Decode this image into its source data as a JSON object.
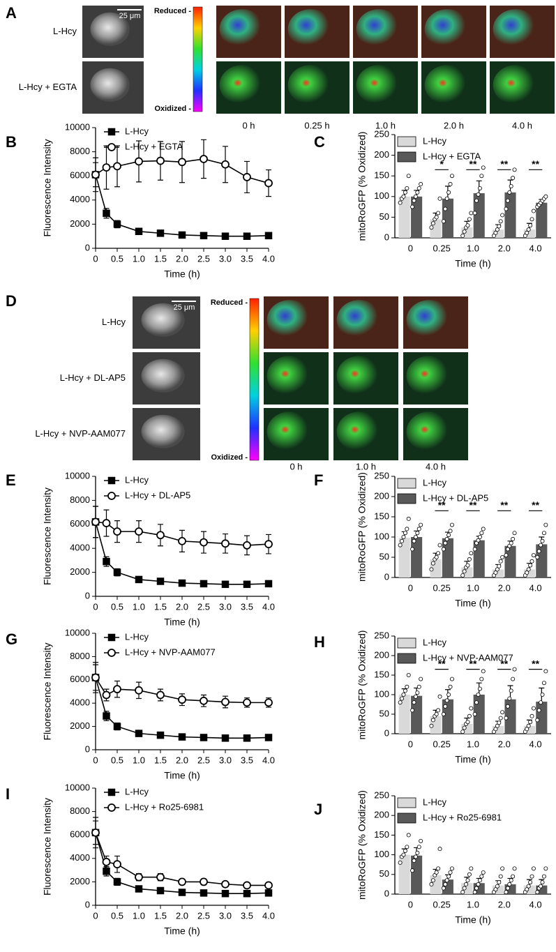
{
  "image_panels": [
    {
      "panel": "A",
      "scale_bar": "25 μm",
      "rows": [
        "L-Hcy",
        "L-Hcy + EGTA"
      ],
      "colorbar": {
        "top": "Reduced -",
        "bottom": "Oxidized -"
      },
      "times": [
        "0 h",
        "0.25 h",
        "1.0 h",
        "2.0 h",
        "4.0 h"
      ]
    },
    {
      "panel": "D",
      "scale_bar": "25 μm",
      "rows": [
        "L-Hcy",
        "L-Hcy + DL-AP5",
        "L-Hcy + NVP-AAM077"
      ],
      "colorbar": {
        "top": "Reduced -",
        "bottom": "Oxidized -"
      },
      "times": [
        "0 h",
        "1.0 h",
        "4.0 h"
      ]
    }
  ],
  "chart_data": [
    {
      "type": "line",
      "panel": "B",
      "xlabel": "Time (h)",
      "ylabel": "Fluorescence Intensity",
      "x": [
        0,
        0.25,
        0.5,
        1,
        1.5,
        2,
        2.5,
        3,
        3.5,
        4
      ],
      "xlim": [
        0,
        4
      ],
      "xticks": [
        0,
        0.5,
        {
          "value": 1,
          "label": "1.0"
        },
        1.5,
        {
          "value": 2,
          "label": "2.0"
        },
        2.5,
        {
          "value": 3,
          "label": "3.0"
        },
        3.5,
        {
          "value": 4,
          "label": "4.0"
        }
      ],
      "ylim": [
        0,
        10000
      ],
      "yticks": [
        0,
        2000,
        4000,
        6000,
        8000,
        10000
      ],
      "series": [
        {
          "name": "L-Hcy",
          "color": "#000000",
          "marker": "square",
          "filled": true,
          "values": [
            6100,
            2900,
            2000,
            1400,
            1250,
            1100,
            1050,
            1000,
            1000,
            1050
          ],
          "errors": [
            1400,
            400,
            300,
            200,
            150,
            100,
            100,
            100,
            100,
            100
          ]
        },
        {
          "name": "L-Hcy + EGTA",
          "color": "#000000",
          "marker": "circle",
          "filled": false,
          "values": [
            6100,
            6700,
            6800,
            7200,
            7250,
            7150,
            7400,
            6950,
            5900,
            5400
          ],
          "errors": [
            1000,
            1800,
            1700,
            1700,
            1600,
            1700,
            1600,
            1500,
            1300,
            1100
          ]
        }
      ]
    },
    {
      "type": "bar",
      "panel": "C",
      "xlabel": "Time (h)",
      "ylabel": "mitoRoGFP (% Oxidized)",
      "categories": [
        "0",
        "0.25",
        "1.0",
        "2.0",
        "4.0"
      ],
      "ylim": [
        0,
        250
      ],
      "yticks": [
        0,
        50,
        100,
        150,
        200,
        250
      ],
      "significance": [
        null,
        "*",
        "**",
        "**",
        "**"
      ],
      "series": [
        {
          "name": "L-Hcy",
          "color": "#d9d9d9",
          "values": [
            100,
            45,
            25,
            20,
            20
          ],
          "errors": [
            15,
            15,
            15,
            12,
            15
          ],
          "points": [
            [
              85,
              95,
              100,
              110,
              120,
              150
            ],
            [
              25,
              35,
              45,
              50,
              60,
              95
            ],
            [
              5,
              15,
              25,
              30,
              45,
              60
            ],
            [
              5,
              12,
              20,
              28,
              40,
              55
            ],
            [
              5,
              12,
              20,
              30,
              45,
              65
            ]
          ]
        },
        {
          "name": "L-Hcy + EGTA",
          "color": "#595959",
          "values": [
            100,
            95,
            108,
            110,
            85
          ],
          "errors": [
            15,
            30,
            30,
            30,
            8
          ],
          "points": [
            [
              75,
              90,
              100,
              110,
              120,
              130
            ],
            [
              40,
              70,
              95,
              110,
              130,
              150
            ],
            [
              60,
              90,
              105,
              120,
              150,
              170
            ],
            [
              70,
              90,
              110,
              125,
              145,
              165
            ],
            [
              75,
              80,
              85,
              90,
              95,
              100
            ]
          ]
        }
      ]
    },
    {
      "type": "line",
      "panel": "E",
      "xlabel": "Time (h)",
      "ylabel": "Fluorescence Intensity",
      "x": [
        0,
        0.25,
        0.5,
        1,
        1.5,
        2,
        2.5,
        3,
        3.5,
        4
      ],
      "xlim": [
        0,
        4
      ],
      "xticks": [
        0,
        0.5,
        {
          "value": 1,
          "label": "1.0"
        },
        1.5,
        {
          "value": 2,
          "label": "2.0"
        },
        2.5,
        {
          "value": 3,
          "label": "3.0"
        },
        3.5,
        {
          "value": 4,
          "label": "4.0"
        }
      ],
      "ylim": [
        0,
        10000
      ],
      "yticks": [
        0,
        2000,
        4000,
        6000,
        8000,
        10000
      ],
      "series": [
        {
          "name": "L-Hcy",
          "color": "#000000",
          "marker": "square",
          "filled": true,
          "values": [
            6200,
            2900,
            2000,
            1400,
            1250,
            1100,
            1050,
            1000,
            1000,
            1050
          ],
          "errors": [
            1300,
            400,
            300,
            200,
            150,
            100,
            100,
            100,
            100,
            100
          ]
        },
        {
          "name": "L-Hcy + DL-AP5",
          "color": "#000000",
          "marker": "circle",
          "filled": false,
          "values": [
            6200,
            6100,
            5400,
            5400,
            5100,
            4600,
            4500,
            4400,
            4250,
            4350
          ],
          "errors": [
            1300,
            1100,
            900,
            900,
            900,
            900,
            900,
            800,
            800,
            800
          ]
        }
      ]
    },
    {
      "type": "bar",
      "panel": "F",
      "xlabel": "Time (h)",
      "ylabel": "mitoRoGFP (% Oxidized)",
      "categories": [
        "0",
        "0.25",
        "1.0",
        "2.0",
        "4.0"
      ],
      "ylim": [
        0,
        250
      ],
      "yticks": [
        0,
        50,
        100,
        150,
        200,
        250
      ],
      "significance": [
        null,
        "**",
        "**",
        "**",
        "**"
      ],
      "series": [
        {
          "name": "L-Hcy",
          "color": "#d9d9d9",
          "values": [
            98,
            45,
            25,
            20,
            20
          ],
          "errors": [
            15,
            15,
            15,
            12,
            15
          ],
          "points": [
            [
              80,
              90,
              100,
              110,
              120,
              145
            ],
            [
              20,
              35,
              45,
              50,
              60,
              80
            ],
            [
              5,
              15,
              25,
              30,
              45,
              60
            ],
            [
              5,
              12,
              20,
              28,
              40,
              50
            ],
            [
              5,
              12,
              20,
              30,
              40,
              55
            ]
          ]
        },
        {
          "name": "L-Hcy + DL-AP5",
          "color": "#595959",
          "values": [
            100,
            97,
            92,
            78,
            82
          ],
          "errors": [
            15,
            15,
            10,
            12,
            18
          ],
          "points": [
            [
              70,
              90,
              100,
              110,
              120,
              130
            ],
            [
              70,
              85,
              95,
              105,
              115,
              130
            ],
            [
              70,
              85,
              92,
              100,
              110,
              120
            ],
            [
              55,
              70,
              78,
              85,
              95,
              110
            ],
            [
              50,
              65,
              80,
              90,
              110,
              130
            ]
          ]
        }
      ]
    },
    {
      "type": "line",
      "panel": "G",
      "xlabel": "Time (h)",
      "ylabel": "Fluorescence Intensity",
      "x": [
        0,
        0.25,
        0.5,
        1,
        1.5,
        2,
        2.5,
        3,
        3.5,
        4
      ],
      "xlim": [
        0,
        4
      ],
      "xticks": [
        0,
        0.5,
        {
          "value": 1,
          "label": "1.0"
        },
        1.5,
        {
          "value": 2,
          "label": "2.0"
        },
        2.5,
        {
          "value": 3,
          "label": "3.0"
        },
        3.5,
        {
          "value": 4,
          "label": "4.0"
        }
      ],
      "ylim": [
        0,
        10000
      ],
      "yticks": [
        0,
        2000,
        4000,
        6000,
        8000,
        10000
      ],
      "series": [
        {
          "name": "L-Hcy",
          "color": "#000000",
          "marker": "square",
          "filled": true,
          "values": [
            6200,
            2900,
            2000,
            1400,
            1250,
            1100,
            1050,
            1000,
            1000,
            1050
          ],
          "errors": [
            1300,
            400,
            300,
            200,
            150,
            100,
            100,
            100,
            100,
            100
          ]
        },
        {
          "name": "L-Hcy + NVP-AAM077",
          "color": "#000000",
          "marker": "circle",
          "filled": false,
          "values": [
            6200,
            4700,
            5200,
            5100,
            4700,
            4300,
            4200,
            4100,
            4050,
            4050
          ],
          "errors": [
            1100,
            500,
            700,
            700,
            500,
            500,
            500,
            500,
            400,
            400
          ]
        }
      ]
    },
    {
      "type": "bar",
      "panel": "H",
      "xlabel": "Time (h)",
      "ylabel": "mitoRoGFP (% Oxidized)",
      "categories": [
        "0",
        "0.25",
        "1.0",
        "2.0",
        "4.0"
      ],
      "ylim": [
        0,
        250
      ],
      "yticks": [
        0,
        50,
        100,
        150,
        200,
        250
      ],
      "significance": [
        null,
        "**",
        "**",
        "**",
        "**"
      ],
      "series": [
        {
          "name": "L-Hcy",
          "color": "#d9d9d9",
          "values": [
            100,
            45,
            25,
            20,
            20
          ],
          "errors": [
            15,
            15,
            15,
            12,
            15
          ],
          "points": [
            [
              80,
              90,
              100,
              110,
              120,
              150
            ],
            [
              20,
              35,
              45,
              50,
              60,
              95
            ],
            [
              5,
              15,
              25,
              30,
              45,
              65
            ],
            [
              5,
              12,
              20,
              28,
              40,
              55
            ],
            [
              5,
              12,
              20,
              30,
              45,
              65
            ]
          ]
        },
        {
          "name": "L-Hcy + NVP-AAM077",
          "color": "#595959",
          "values": [
            97,
            88,
            100,
            88,
            82
          ],
          "errors": [
            20,
            25,
            30,
            35,
            35
          ],
          "points": [
            [
              60,
              80,
              95,
              105,
              120,
              140
            ],
            [
              50,
              70,
              85,
              100,
              120,
              140
            ],
            [
              50,
              80,
              100,
              115,
              140,
              160
            ],
            [
              40,
              70,
              90,
              110,
              140,
              165
            ],
            [
              35,
              60,
              80,
              100,
              130,
              160
            ]
          ]
        }
      ]
    },
    {
      "type": "line",
      "panel": "I",
      "xlabel": "Time (h)",
      "ylabel": "Fluorescence Intensity",
      "x": [
        0,
        0.25,
        0.5,
        1,
        1.5,
        2,
        2.5,
        3,
        3.5,
        4
      ],
      "xlim": [
        0,
        4
      ],
      "xticks": [
        0,
        0.5,
        {
          "value": 1,
          "label": "1.0"
        },
        1.5,
        {
          "value": 2,
          "label": "2.0"
        },
        2.5,
        {
          "value": 3,
          "label": "3.0"
        },
        3.5,
        {
          "value": 4,
          "label": "4.0"
        }
      ],
      "ylim": [
        0,
        10000
      ],
      "yticks": [
        0,
        2000,
        4000,
        6000,
        8000,
        10000
      ],
      "series": [
        {
          "name": "L-Hcy",
          "color": "#000000",
          "marker": "square",
          "filled": true,
          "values": [
            6200,
            2900,
            2000,
            1400,
            1250,
            1100,
            1050,
            1000,
            1000,
            1050
          ],
          "errors": [
            1300,
            400,
            300,
            200,
            150,
            100,
            100,
            100,
            100,
            100
          ]
        },
        {
          "name": "L-Hcy + Ro25-6981",
          "color": "#000000",
          "marker": "circle",
          "filled": false,
          "values": [
            6200,
            3700,
            3500,
            2400,
            2400,
            2000,
            2000,
            1800,
            1700,
            1700
          ],
          "errors": [
            1000,
            500,
            700,
            300,
            300,
            200,
            250,
            200,
            150,
            200
          ]
        }
      ]
    },
    {
      "type": "bar",
      "panel": "J",
      "xlabel": "Time (h)",
      "ylabel": "mitoRoGFP (% Oxidized)",
      "categories": [
        "0",
        "0.25",
        "1.0",
        "2.0",
        "4.0"
      ],
      "ylim": [
        0,
        250
      ],
      "yticks": [
        0,
        50,
        100,
        150,
        200,
        250
      ],
      "series": [
        {
          "name": "L-Hcy",
          "color": "#d9d9d9",
          "values": [
            100,
            48,
            28,
            22,
            22
          ],
          "errors": [
            15,
            15,
            15,
            12,
            15
          ],
          "points": [
            [
              80,
              95,
              100,
              110,
              120,
              150
            ],
            [
              25,
              35,
              48,
              55,
              65,
              115
            ],
            [
              5,
              15,
              25,
              35,
              50,
              65
            ],
            [
              5,
              12,
              20,
              30,
              45,
              65
            ],
            [
              5,
              12,
              20,
              30,
              45,
              65
            ]
          ]
        },
        {
          "name": "L-Hcy + Ro25-6981",
          "color": "#595959",
          "values": [
            98,
            37,
            28,
            25,
            22
          ],
          "errors": [
            20,
            12,
            12,
            15,
            15
          ],
          "points": [
            [
              60,
              85,
              95,
              105,
              120,
              135
            ],
            [
              15,
              25,
              35,
              45,
              55,
              65
            ],
            [
              5,
              15,
              25,
              35,
              45,
              55
            ],
            [
              5,
              15,
              25,
              35,
              45,
              65
            ],
            [
              5,
              15,
              20,
              30,
              45,
              65
            ]
          ]
        }
      ]
    }
  ]
}
